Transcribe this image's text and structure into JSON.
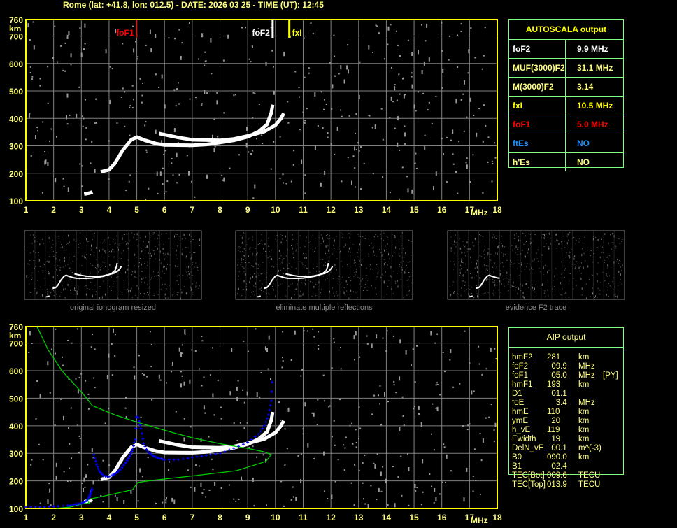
{
  "header": {
    "title": "Rome (lat: +41.8, lon: 012.5) - DATE: 2026 03 25 - TIME (UT): 12:45"
  },
  "colors": {
    "frame": "#ffff00",
    "label": "#ffff80",
    "grid": "#808080",
    "table_border": "#80ff80",
    "foF1": "#ff0000",
    "foF2": "#ffffff",
    "fxI": "#ffff00",
    "ftEs": "#1e90ff",
    "model_trace": "#0000ff",
    "profile": "#00cc00"
  },
  "autoscala": {
    "title": "AUTOSCALA output",
    "rows": [
      {
        "label": "foF2",
        "value": "9.9 MHz",
        "color": "#ffffff"
      },
      {
        "label": "MUF(3000)F2",
        "value": "31.1 MHz",
        "color": "#ffff80"
      },
      {
        "label": "M(3000)F2",
        "value": "3.14",
        "color": "#ffff80"
      },
      {
        "label": "fxI",
        "value": "10.5 MHz",
        "color": "#ffff00"
      },
      {
        "label": "foF1",
        "value": "5.0 MHz",
        "color": "#ff0000"
      },
      {
        "label": "ftEs",
        "value": "NO",
        "color": "#1e90ff"
      },
      {
        "label": "h'Es",
        "value": "NO",
        "color": "#ffff80"
      }
    ]
  },
  "aip": {
    "title": "AIP output",
    "rows": [
      {
        "name": "hmF2",
        "value": "281",
        "unit": "km",
        "flag": ""
      },
      {
        "name": "foF2",
        "value": "  09.9",
        "unit": "MHz",
        "flag": ""
      },
      {
        "name": "foF1",
        "value": "  05.0",
        "unit": "MHz",
        "flag": "[PY]"
      },
      {
        "name": "hmF1",
        "value": "193",
        "unit": "km",
        "flag": ""
      },
      {
        "name": "D1",
        "value": "  01.1",
        "unit": "",
        "flag": ""
      },
      {
        "name": "foE",
        "value": "    3.4",
        "unit": "MHz",
        "flag": ""
      },
      {
        "name": "hmE",
        "value": "110",
        "unit": "km",
        "flag": ""
      },
      {
        "name": "ymE",
        "value": "  20",
        "unit": "km",
        "flag": ""
      },
      {
        "name": "h_vE",
        "value": "119",
        "unit": "km",
        "flag": ""
      },
      {
        "name": "Ewidth",
        "value": "  19",
        "unit": "km",
        "flag": ""
      },
      {
        "name": "DelN_vE",
        "value": "  00.1",
        "unit": "m^(-3)",
        "flag": ""
      },
      {
        "name": "B0",
        "value": "090.0",
        "unit": "km",
        "flag": ""
      },
      {
        "name": "B1",
        "value": "  02.4",
        "unit": "",
        "flag": ""
      },
      {
        "name": "TEC[Bot]",
        "value": "009.6",
        "unit": "TECU",
        "flag": ""
      },
      {
        "name": "TEC[Top]",
        "value": "013.9",
        "unit": "TECU",
        "flag": ""
      }
    ]
  },
  "thumbnails": [
    {
      "caption": "original ionogram resized"
    },
    {
      "caption": "eliminate multiple reflections"
    },
    {
      "caption": "evidence F2 trace"
    }
  ],
  "chart_data": [
    {
      "type": "scatter",
      "title": "",
      "xlabel": "MHz",
      "ylabel": "km",
      "xlim": [
        1,
        18
      ],
      "ylim": [
        100,
        760
      ],
      "x_ticks": [
        "1",
        "2",
        "3",
        "4",
        "5",
        "6",
        "7",
        "8",
        "9",
        "10",
        "11",
        "12",
        "13",
        "14",
        "15",
        "16",
        "17",
        "18"
      ],
      "y_ticks": [
        "100",
        "200",
        "300",
        "400",
        "500",
        "600",
        "700",
        "760"
      ],
      "grid": true,
      "markers": [
        {
          "label": "foF1",
          "freq": 5.0,
          "color": "#ff0000"
        },
        {
          "label": "foF2",
          "freq": 9.9,
          "color": "#ffffff"
        },
        {
          "label": "fxI",
          "freq": 10.5,
          "color": "#ffff00"
        }
      ],
      "traces": {
        "o_trace": [
          [
            3.1,
            124
          ],
          [
            3.3,
            128
          ],
          [
            3.4,
            132
          ]
        ],
        "f_o_trace": [
          [
            3.7,
            205
          ],
          [
            4.0,
            213
          ],
          [
            4.2,
            235
          ],
          [
            4.5,
            285
          ],
          [
            4.8,
            322
          ],
          [
            5.0,
            332
          ],
          [
            5.3,
            320
          ],
          [
            5.7,
            308
          ],
          [
            6.0,
            303
          ],
          [
            7.0,
            302
          ],
          [
            7.5,
            305
          ],
          [
            8.0,
            312
          ],
          [
            8.5,
            320
          ],
          [
            9.0,
            333
          ],
          [
            9.4,
            352
          ],
          [
            9.7,
            378
          ],
          [
            9.85,
            420
          ],
          [
            9.9,
            450
          ]
        ],
        "f_x_trace": [
          [
            5.8,
            345
          ],
          [
            6.5,
            330
          ],
          [
            7.0,
            322
          ],
          [
            8.0,
            320
          ],
          [
            8.5,
            325
          ],
          [
            9.0,
            336
          ],
          [
            9.6,
            352
          ],
          [
            10.0,
            375
          ],
          [
            10.2,
            400
          ],
          [
            10.3,
            418
          ]
        ]
      }
    },
    {
      "type": "line",
      "title": "",
      "xlabel": "MHz",
      "ylabel": "km",
      "xlim": [
        1,
        18
      ],
      "ylim": [
        100,
        760
      ],
      "x_ticks": [
        "1",
        "2",
        "3",
        "4",
        "5",
        "6",
        "7",
        "8",
        "9",
        "10",
        "11",
        "12",
        "13",
        "14",
        "15",
        "16",
        "17",
        "18"
      ],
      "y_ticks": [
        "100",
        "200",
        "300",
        "400",
        "500",
        "600",
        "700",
        "760"
      ],
      "grid": true,
      "traces": {
        "o_trace": [
          [
            3.1,
            124
          ],
          [
            3.3,
            128
          ],
          [
            3.4,
            132
          ]
        ],
        "f_o_trace": [
          [
            3.7,
            205
          ],
          [
            4.0,
            213
          ],
          [
            4.2,
            235
          ],
          [
            4.5,
            285
          ],
          [
            4.8,
            322
          ],
          [
            5.0,
            332
          ],
          [
            5.3,
            320
          ],
          [
            5.7,
            308
          ],
          [
            6.0,
            303
          ],
          [
            7.0,
            302
          ],
          [
            7.5,
            305
          ],
          [
            8.0,
            312
          ],
          [
            8.5,
            320
          ],
          [
            9.0,
            333
          ],
          [
            9.4,
            352
          ],
          [
            9.7,
            378
          ],
          [
            9.85,
            420
          ],
          [
            9.9,
            450
          ]
        ],
        "f_x_trace": [
          [
            5.8,
            345
          ],
          [
            6.5,
            330
          ],
          [
            7.0,
            322
          ],
          [
            8.0,
            320
          ],
          [
            8.5,
            325
          ],
          [
            9.0,
            336
          ],
          [
            9.6,
            352
          ],
          [
            10.0,
            375
          ],
          [
            10.2,
            400
          ],
          [
            10.3,
            418
          ]
        ],
        "model_e": [
          [
            1.0,
            105
          ],
          [
            1.5,
            105
          ],
          [
            2.0,
            107
          ],
          [
            2.5,
            110
          ],
          [
            2.8,
            115
          ],
          [
            3.0,
            118
          ],
          [
            3.2,
            128
          ],
          [
            3.3,
            145
          ],
          [
            3.35,
            160
          ],
          [
            3.4,
            175
          ]
        ],
        "model_f1": [
          [
            3.45,
            295
          ],
          [
            3.55,
            260
          ],
          [
            3.65,
            235
          ],
          [
            3.8,
            218
          ],
          [
            4.0,
            215
          ],
          [
            4.2,
            225
          ],
          [
            4.4,
            240
          ],
          [
            4.6,
            265
          ],
          [
            4.75,
            290
          ],
          [
            4.85,
            315
          ],
          [
            4.95,
            350
          ],
          [
            5.0,
            470
          ]
        ],
        "model_f2": [
          [
            5.05,
            430
          ],
          [
            5.15,
            390
          ],
          [
            5.25,
            335
          ],
          [
            5.4,
            305
          ],
          [
            5.6,
            290
          ],
          [
            5.8,
            282
          ],
          [
            6.0,
            277
          ],
          [
            6.5,
            277
          ],
          [
            7.0,
            285
          ],
          [
            7.5,
            292
          ],
          [
            8.0,
            300
          ],
          [
            8.5,
            318
          ],
          [
            9.0,
            340
          ],
          [
            9.4,
            370
          ],
          [
            9.6,
            400
          ],
          [
            9.75,
            440
          ],
          [
            9.85,
            490
          ],
          [
            9.9,
            590
          ]
        ],
        "profile": [
          [
            1.4,
            760
          ],
          [
            1.8,
            676
          ],
          [
            2.3,
            600
          ],
          [
            3.1,
            511
          ],
          [
            3.4,
            473
          ],
          [
            4.2,
            440
          ],
          [
            5.1,
            410
          ],
          [
            6.4,
            372
          ],
          [
            7.1,
            354
          ],
          [
            8.1,
            333
          ],
          [
            9.1,
            316
          ],
          [
            9.6,
            305
          ],
          [
            9.85,
            295
          ],
          [
            9.65,
            270
          ],
          [
            8.6,
            237
          ],
          [
            7.1,
            219
          ],
          [
            5.5,
            201
          ],
          [
            5.03,
            194
          ],
          [
            4.85,
            168
          ],
          [
            4.1,
            151
          ],
          [
            3.35,
            135
          ],
          [
            3.2,
            130
          ],
          [
            3.3,
            118
          ],
          [
            3.1,
            118
          ],
          [
            2.6,
            105
          ],
          [
            2.1,
            100
          ]
        ]
      }
    }
  ]
}
